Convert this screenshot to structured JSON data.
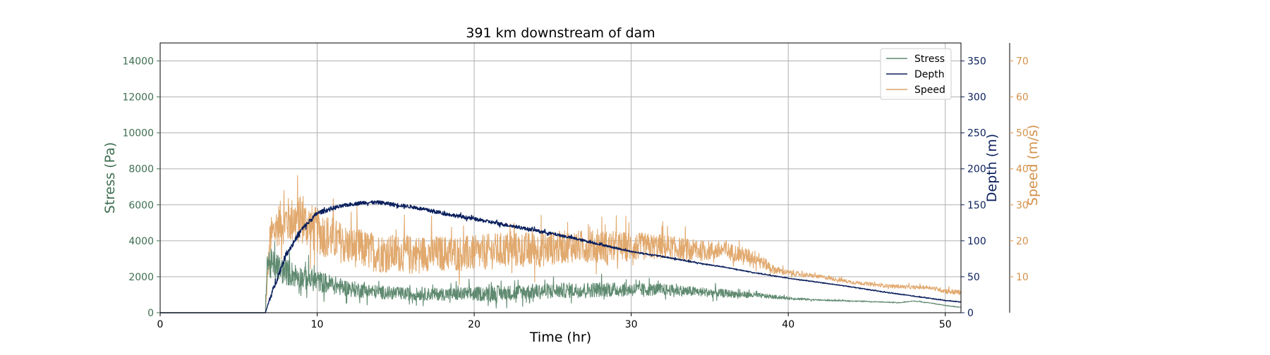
{
  "chart_data": {
    "type": "line",
    "title": "391 km downstream of dam",
    "xlabel": "Time (hr)",
    "xlim": [
      0,
      51
    ],
    "xticks": [
      0,
      10,
      20,
      30,
      40,
      50
    ],
    "grid": true,
    "legend_position": "top-right",
    "axes": {
      "stress": {
        "label": "Stress (Pa)",
        "side": "left",
        "ylim": [
          0,
          15000
        ],
        "ticks": [
          0,
          2000,
          4000,
          6000,
          8000,
          10000,
          12000,
          14000
        ],
        "color": "#3e6e50"
      },
      "depth": {
        "label": "Depth (m)",
        "side": "right",
        "ylim": [
          0,
          375
        ],
        "ticks": [
          0,
          50,
          100,
          150,
          200,
          250,
          300,
          350
        ],
        "color": "#0a1f5c"
      },
      "speed": {
        "label": "Speed (m/s)",
        "side": "right-offset",
        "ylim": [
          0,
          75
        ],
        "ticks": [
          10,
          20,
          30,
          40,
          50,
          60,
          70
        ],
        "color": "#d4914a"
      }
    },
    "series": [
      {
        "name": "Stress",
        "axis": "stress",
        "color": "#5f8a70",
        "x": [
          0,
          6.7,
          6.8,
          7.0,
          7.5,
          8.0,
          9.0,
          10.0,
          12.0,
          14.0,
          16.0,
          18.0,
          20.0,
          22.0,
          24.0,
          26.0,
          28.0,
          30.0,
          32.0,
          34.0,
          36.0,
          38.0,
          40.0,
          42.0,
          44.0,
          46.0,
          47.0,
          48.0,
          49.0,
          50.0,
          51.0
        ],
        "values": [
          0,
          0,
          2800,
          2600,
          2400,
          2200,
          1900,
          1700,
          1300,
          1100,
          1000,
          1000,
          1000,
          1050,
          1150,
          1200,
          1250,
          1250,
          1250,
          1150,
          1050,
          950,
          800,
          700,
          650,
          600,
          550,
          650,
          550,
          400,
          300
        ],
        "noise": [
          0,
          0,
          1800,
          1800,
          1600,
          1500,
          1300,
          1200,
          900,
          750,
          700,
          700,
          800,
          850,
          850,
          850,
          850,
          750,
          650,
          550,
          450,
          300,
          150,
          80,
          60,
          50,
          50,
          40,
          40,
          40,
          40
        ]
      },
      {
        "name": "Depth",
        "axis": "depth",
        "color": "#0a1f5c",
        "x": [
          0,
          6.7,
          7.0,
          7.5,
          8.0,
          9.0,
          10.0,
          11.0,
          12.0,
          13.0,
          14.0,
          15.0,
          16.0,
          18.0,
          20.0,
          22.0,
          24.0,
          26.0,
          28.0,
          30.0,
          32.0,
          34.0,
          36.0,
          38.0,
          40.0,
          42.0,
          44.0,
          46.0,
          48.0,
          50.0,
          51.0
        ],
        "values": [
          0,
          0,
          20,
          50,
          80,
          115,
          138,
          145,
          150,
          153,
          153,
          150,
          147,
          138,
          130,
          122,
          114,
          105,
          95,
          85,
          78,
          70,
          63,
          55,
          48,
          42,
          36,
          29,
          23,
          17,
          15
        ],
        "noise": [
          0,
          0,
          8,
          8,
          8,
          7,
          6,
          6,
          5,
          5,
          5,
          5,
          5,
          5,
          5,
          5,
          4,
          4,
          3,
          2,
          2,
          2,
          1,
          1,
          1,
          1,
          1,
          1,
          1,
          1,
          1
        ]
      },
      {
        "name": "Speed",
        "axis": "speed",
        "color": "#dfa466",
        "x": [
          0,
          6.7,
          7.0,
          7.5,
          8.0,
          9.0,
          10.0,
          12.0,
          14.0,
          16.0,
          18.0,
          20.0,
          22.0,
          24.0,
          26.0,
          28.0,
          30.0,
          32.0,
          34.0,
          36.0,
          38.0,
          39.0,
          40.0,
          42.0,
          44.0,
          46.0,
          48.0,
          49.0,
          50.0,
          51.0
        ],
        "values": [
          0,
          0,
          20,
          24,
          25,
          25,
          22,
          18,
          16,
          16,
          16,
          16,
          17,
          17,
          18,
          18,
          18,
          18,
          17,
          17,
          15,
          12,
          11,
          10,
          8.5,
          7.5,
          7,
          7,
          6,
          5.5
        ],
        "noise": [
          0,
          0,
          11,
          12,
          13,
          13,
          13,
          11,
          11,
          10,
          10,
          10,
          10,
          10,
          9,
          9,
          8,
          7,
          6,
          5,
          4,
          2.5,
          1.5,
          1,
          1,
          1,
          1,
          1,
          1.5,
          1.5
        ]
      }
    ]
  }
}
